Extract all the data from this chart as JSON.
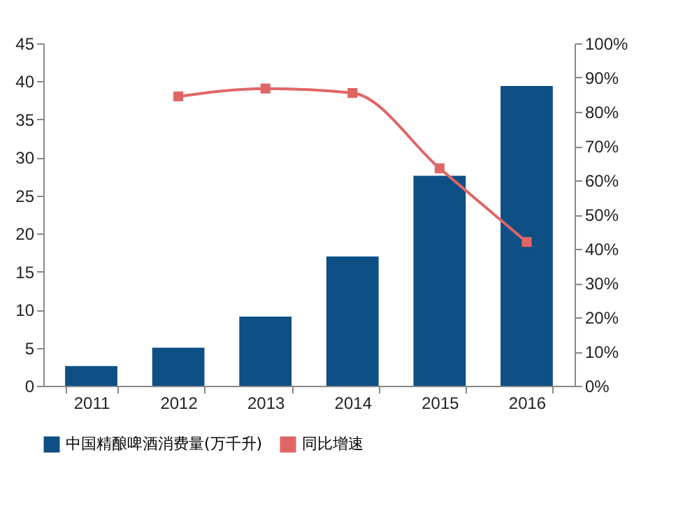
{
  "chart_data": {
    "type": "bar",
    "categories": [
      "2011",
      "2012",
      "2013",
      "2014",
      "2015",
      "2016"
    ],
    "series": [
      {
        "name": "中国精酿啤酒消费量(万千升)",
        "color": "#0e4f86",
        "values": [
          2.6,
          5.0,
          9.1,
          17.0,
          27.6,
          39.4
        ]
      },
      {
        "name": "同比增速",
        "type": "line",
        "axis": "y2",
        "color": "#e06666",
        "values": [
          null,
          84.5,
          86.8,
          85.5,
          63.5,
          42
        ]
      }
    ],
    "ylim": [
      0,
      45
    ],
    "yticks": [
      0,
      5,
      10,
      15,
      20,
      25,
      30,
      35,
      40,
      45
    ],
    "y2lim": [
      0,
      100
    ],
    "y2ticks": [
      {
        "value": 0,
        "label": "0%"
      },
      {
        "value": 10,
        "label": "10%"
      },
      {
        "value": 20,
        "label": "20%"
      },
      {
        "value": 30,
        "label": "30%"
      },
      {
        "value": 40,
        "label": "40%"
      },
      {
        "value": 50,
        "label": "50%"
      },
      {
        "value": 60,
        "label": "60%"
      },
      {
        "value": 70,
        "label": "70%"
      },
      {
        "value": 80,
        "label": "80%"
      },
      {
        "value": 90,
        "label": "90%"
      },
      {
        "value": 100,
        "label": "100%"
      }
    ],
    "legend": "bottom",
    "marker": "square"
  }
}
